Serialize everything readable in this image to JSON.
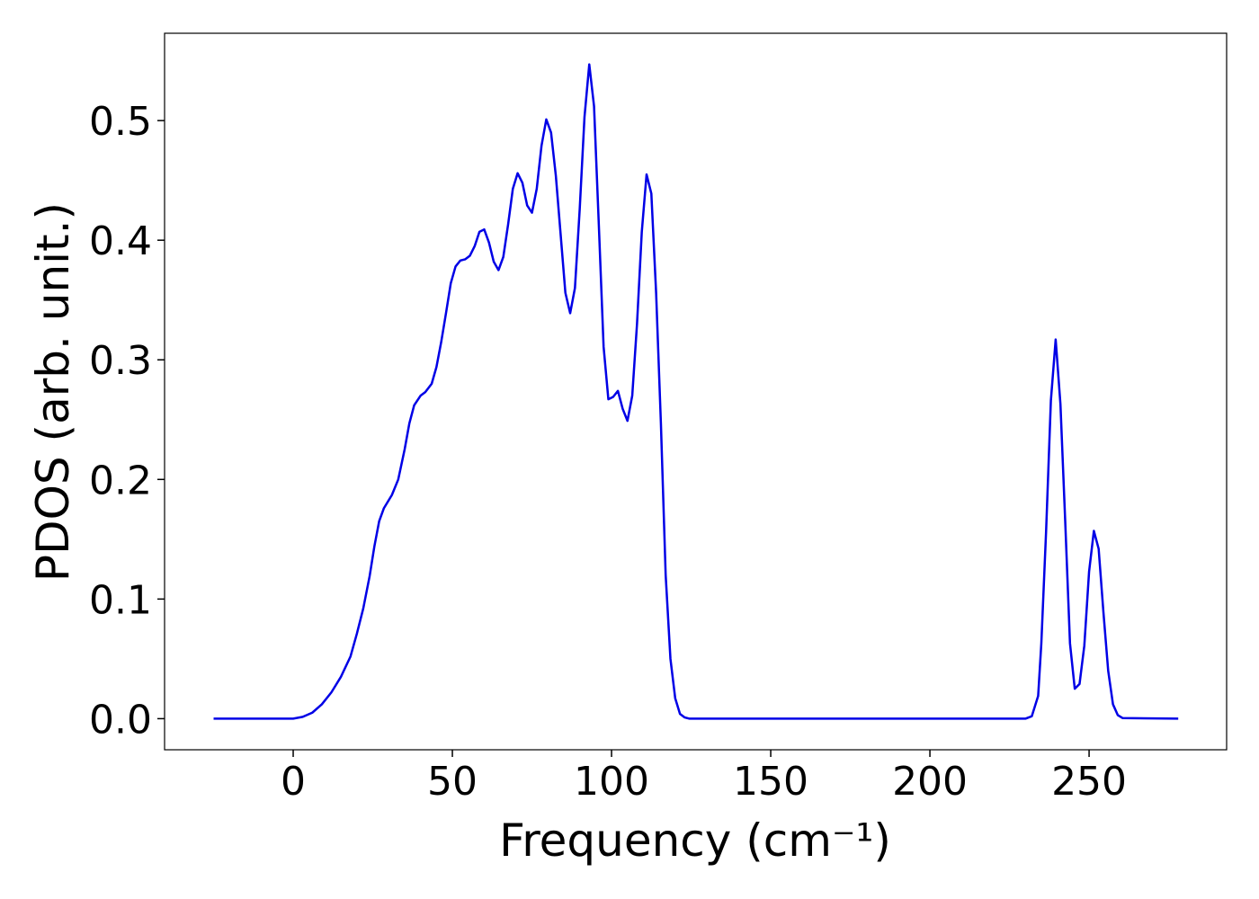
{
  "chart_data": {
    "type": "line",
    "xlabel": "Frequency (cm⁻¹)",
    "ylabel": "PDOS (arb. unit.)",
    "x": [
      -25,
      0,
      3,
      6,
      9,
      12,
      15,
      18,
      20,
      22,
      24,
      25.5,
      27,
      28.5,
      31,
      33,
      35,
      36.5,
      38,
      40,
      41.5,
      43.5,
      45,
      46.5,
      48,
      49.5,
      51,
      52.5,
      54,
      55.5,
      57,
      58.5,
      60,
      61.5,
      63,
      64.5,
      66,
      67.5,
      69,
      70.5,
      72,
      73.5,
      75,
      76.5,
      78,
      79.5,
      81,
      82.5,
      84,
      85.5,
      87,
      88.5,
      90,
      91.5,
      93,
      94.5,
      96,
      97.5,
      99,
      100.5,
      102,
      103.5,
      105,
      106.5,
      108,
      109.5,
      111,
      112.5,
      114,
      115.5,
      117,
      118.5,
      120,
      121.5,
      123,
      124.5,
      230,
      232,
      234,
      235,
      236.5,
      238,
      239.5,
      241,
      242.5,
      244,
      245.5,
      247,
      248.5,
      250,
      251.5,
      253,
      254.5,
      256,
      257.5,
      259,
      260.5,
      278
    ],
    "series": [
      {
        "color": "#0000e6",
        "values": [
          0,
          0,
          0.0015,
          0.005,
          0.012,
          0.022,
          0.035,
          0.052,
          0.071,
          0.092,
          0.119,
          0.144,
          0.165,
          0.176,
          0.187,
          0.2,
          0.225,
          0.247,
          0.262,
          0.27,
          0.273,
          0.28,
          0.294,
          0.315,
          0.339,
          0.364,
          0.378,
          0.383,
          0.384,
          0.387,
          0.395,
          0.407,
          0.409,
          0.398,
          0.382,
          0.375,
          0.386,
          0.413,
          0.443,
          0.456,
          0.448,
          0.429,
          0.423,
          0.443,
          0.479,
          0.501,
          0.49,
          0.454,
          0.405,
          0.356,
          0.339,
          0.36,
          0.426,
          0.503,
          0.547,
          0.512,
          0.413,
          0.311,
          0.267,
          0.269,
          0.274,
          0.259,
          0.249,
          0.27,
          0.33,
          0.407,
          0.455,
          0.439,
          0.356,
          0.247,
          0.12,
          0.05,
          0.017,
          0.004,
          0.001,
          0,
          0,
          0.002,
          0.019,
          0.063,
          0.157,
          0.266,
          0.317,
          0.263,
          0.165,
          0.063,
          0.025,
          0.029,
          0.061,
          0.123,
          0.157,
          0.142,
          0.089,
          0.04,
          0.012,
          0.003,
          0.0005,
          0
        ]
      }
    ],
    "xlim": [
      -40.4,
      293.2
    ],
    "ylim": [
      -0.026,
      0.573
    ],
    "xticks": [
      0,
      50,
      100,
      150,
      200,
      250
    ],
    "yticks": [
      {
        "value": 0,
        "label": "0.0"
      },
      0.1,
      0.2,
      0.3,
      0.4,
      0.5
    ]
  }
}
